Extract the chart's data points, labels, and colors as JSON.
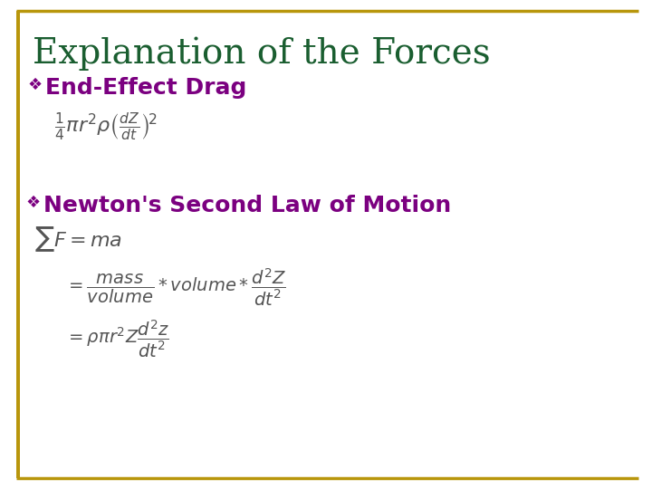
{
  "background_color": "#ffffff",
  "border_color": "#b8960c",
  "title": "Explanation of the Forces",
  "title_color": "#1a5e30",
  "title_fontsize": 28,
  "bullet_color": "#7b0080",
  "bullet1_text": "End-Effect Drag",
  "bullet1_fontsize": 18,
  "bullet2_text": "Newton's Second Law of Motion",
  "bullet2_fontsize": 18,
  "formula_color": "#555555",
  "formula_fontsize": 16
}
